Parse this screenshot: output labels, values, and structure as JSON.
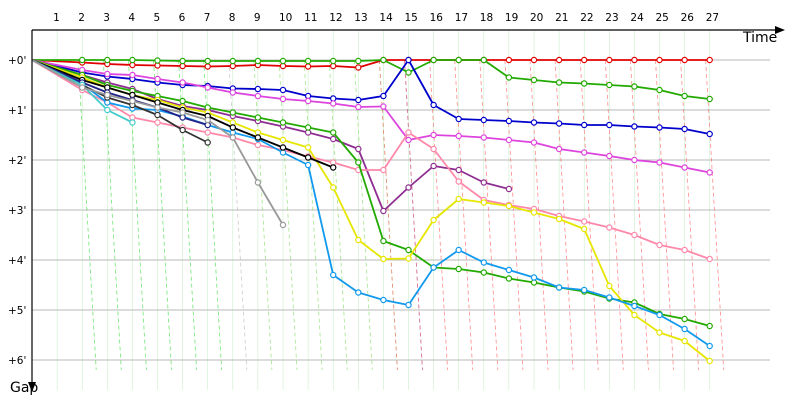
{
  "chart_data": {
    "type": "line",
    "title": "",
    "xlabel": "Time",
    "ylabel": "Gap",
    "x": [
      1,
      2,
      3,
      4,
      5,
      6,
      7,
      8,
      9,
      10,
      11,
      12,
      13,
      14,
      15,
      16,
      17,
      18,
      19,
      20,
      21,
      22,
      23,
      24,
      25,
      26,
      27
    ],
    "xlim": [
      0,
      29
    ],
    "ylim": [
      0,
      6.1
    ],
    "y_ticks": [
      0,
      1,
      2,
      3,
      4,
      5,
      6
    ],
    "y_tick_labels": [
      "+0'",
      "+1'",
      "+2'",
      "+3'",
      "+4'",
      "+5'",
      "+6'"
    ],
    "grid": true,
    "series": [
      {
        "color": "#e00000",
        "values": [
          [
            0,
            0
          ],
          [
            2,
            0.05
          ],
          [
            3,
            0.08
          ],
          [
            4,
            0.1
          ],
          [
            5,
            0.11
          ],
          [
            6,
            0.12
          ],
          [
            7,
            0.13
          ],
          [
            8,
            0.12
          ],
          [
            9,
            0.1
          ],
          [
            10,
            0.12
          ],
          [
            11,
            0.13
          ],
          [
            12,
            0.12
          ],
          [
            13,
            0.15
          ],
          [
            14,
            0.0
          ],
          [
            15,
            0.0
          ],
          [
            16,
            0.0
          ],
          [
            17,
            0.0
          ],
          [
            18,
            0.0
          ],
          [
            19,
            0.0
          ],
          [
            20,
            0.0
          ],
          [
            21,
            0.0
          ],
          [
            22,
            0.0
          ],
          [
            23,
            0.0
          ],
          [
            24,
            0.0
          ],
          [
            25,
            0.0
          ],
          [
            26,
            0.0
          ],
          [
            27,
            0.0
          ]
        ]
      },
      {
        "color": "#22aa00",
        "values": [
          [
            0,
            0
          ],
          [
            2,
            0.0
          ],
          [
            3,
            0.0
          ],
          [
            4,
            0.0
          ],
          [
            5,
            0.01
          ],
          [
            6,
            0.02
          ],
          [
            7,
            0.02
          ],
          [
            8,
            0.02
          ],
          [
            9,
            0.02
          ],
          [
            10,
            0.02
          ],
          [
            11,
            0.02
          ],
          [
            12,
            0.02
          ],
          [
            13,
            0.02
          ],
          [
            14,
            0.0
          ],
          [
            15,
            0.25
          ],
          [
            16,
            0.0
          ],
          [
            17,
            0.0
          ],
          [
            18,
            0.0
          ],
          [
            19,
            0.35
          ],
          [
            20,
            0.4
          ],
          [
            21,
            0.45
          ],
          [
            22,
            0.47
          ],
          [
            23,
            0.5
          ],
          [
            24,
            0.53
          ],
          [
            25,
            0.6
          ],
          [
            26,
            0.72
          ],
          [
            27,
            0.78
          ]
        ]
      },
      {
        "color": "#0000cc",
        "values": [
          [
            0,
            0
          ],
          [
            2,
            0.25
          ],
          [
            3,
            0.33
          ],
          [
            4,
            0.38
          ],
          [
            5,
            0.45
          ],
          [
            6,
            0.5
          ],
          [
            7,
            0.52
          ],
          [
            8,
            0.57
          ],
          [
            9,
            0.58
          ],
          [
            10,
            0.6
          ],
          [
            11,
            0.72
          ],
          [
            12,
            0.77
          ],
          [
            13,
            0.8
          ],
          [
            14,
            0.72
          ],
          [
            15,
            0.0
          ],
          [
            16,
            0.9
          ],
          [
            17,
            1.18
          ],
          [
            18,
            1.2
          ],
          [
            19,
            1.22
          ],
          [
            20,
            1.25
          ],
          [
            21,
            1.27
          ],
          [
            22,
            1.3
          ],
          [
            23,
            1.3
          ],
          [
            24,
            1.33
          ],
          [
            25,
            1.35
          ],
          [
            26,
            1.38
          ],
          [
            27,
            1.48
          ]
        ]
      },
      {
        "color": "#dd44dd",
        "values": [
          [
            0,
            0
          ],
          [
            2,
            0.2
          ],
          [
            3,
            0.28
          ],
          [
            4,
            0.3
          ],
          [
            5,
            0.38
          ],
          [
            6,
            0.45
          ],
          [
            7,
            0.55
          ],
          [
            8,
            0.65
          ],
          [
            9,
            0.72
          ],
          [
            10,
            0.78
          ],
          [
            11,
            0.82
          ],
          [
            12,
            0.87
          ],
          [
            13,
            0.94
          ],
          [
            14,
            0.93
          ],
          [
            15,
            1.6
          ],
          [
            16,
            1.5
          ],
          [
            17,
            1.52
          ],
          [
            18,
            1.55
          ],
          [
            19,
            1.6
          ],
          [
            20,
            1.65
          ],
          [
            21,
            1.78
          ],
          [
            22,
            1.85
          ],
          [
            23,
            1.92
          ],
          [
            24,
            2.0
          ],
          [
            25,
            2.05
          ],
          [
            26,
            2.15
          ],
          [
            27,
            2.25
          ]
        ]
      },
      {
        "color": "#8e2e90",
        "values": [
          [
            0,
            0
          ],
          [
            2,
            0.3
          ],
          [
            3,
            0.45
          ],
          [
            4,
            0.58
          ],
          [
            5,
            0.78
          ],
          [
            6,
            0.92
          ],
          [
            7,
            1.0
          ],
          [
            8,
            1.12
          ],
          [
            9,
            1.22
          ],
          [
            10,
            1.33
          ],
          [
            11,
            1.45
          ],
          [
            12,
            1.58
          ],
          [
            13,
            1.78
          ],
          [
            14,
            3.02
          ],
          [
            15,
            2.55
          ],
          [
            16,
            2.12
          ],
          [
            17,
            2.2
          ],
          [
            18,
            2.45
          ],
          [
            19,
            2.58
          ]
        ]
      },
      {
        "color": "#ff88aa",
        "values": [
          [
            0,
            0
          ],
          [
            2,
            0.6
          ],
          [
            3,
            0.85
          ],
          [
            4,
            1.15
          ],
          [
            5,
            1.25
          ],
          [
            6,
            1.35
          ],
          [
            7,
            1.45
          ],
          [
            8,
            1.55
          ],
          [
            9,
            1.7
          ],
          [
            10,
            1.8
          ],
          [
            11,
            1.93
          ],
          [
            12,
            2.05
          ],
          [
            13,
            2.2
          ],
          [
            14,
            2.2
          ],
          [
            15,
            1.45
          ],
          [
            16,
            1.78
          ],
          [
            17,
            2.43
          ],
          [
            18,
            2.8
          ],
          [
            19,
            2.9
          ],
          [
            20,
            2.98
          ],
          [
            21,
            3.12
          ],
          [
            22,
            3.23
          ],
          [
            23,
            3.35
          ],
          [
            24,
            3.5
          ],
          [
            25,
            3.7
          ],
          [
            26,
            3.8
          ],
          [
            27,
            3.98
          ]
        ]
      },
      {
        "color": "#22aa00",
        "values": [
          [
            0,
            0
          ],
          [
            2,
            0.3
          ],
          [
            3,
            0.5
          ],
          [
            4,
            0.62
          ],
          [
            5,
            0.72
          ],
          [
            6,
            0.82
          ],
          [
            7,
            0.95
          ],
          [
            8,
            1.05
          ],
          [
            9,
            1.15
          ],
          [
            10,
            1.25
          ],
          [
            11,
            1.35
          ],
          [
            12,
            1.45
          ],
          [
            13,
            2.05
          ],
          [
            14,
            3.62
          ],
          [
            15,
            3.8
          ],
          [
            16,
            4.15
          ],
          [
            17,
            4.18
          ],
          [
            18,
            4.25
          ],
          [
            19,
            4.37
          ],
          [
            20,
            4.45
          ],
          [
            21,
            4.55
          ],
          [
            22,
            4.63
          ],
          [
            23,
            4.77
          ],
          [
            24,
            4.85
          ],
          [
            25,
            5.08
          ],
          [
            26,
            5.18
          ],
          [
            27,
            5.32
          ]
        ]
      },
      {
        "color": "#e6e600",
        "values": [
          [
            0,
            0
          ],
          [
            2,
            0.35
          ],
          [
            3,
            0.55
          ],
          [
            4,
            0.7
          ],
          [
            5,
            0.8
          ],
          [
            6,
            0.95
          ],
          [
            7,
            1.05
          ],
          [
            8,
            1.25
          ],
          [
            9,
            1.45
          ],
          [
            10,
            1.6
          ],
          [
            11,
            1.75
          ],
          [
            12,
            2.55
          ],
          [
            13,
            3.6
          ],
          [
            14,
            3.98
          ],
          [
            15,
            3.97
          ],
          [
            16,
            3.2
          ],
          [
            17,
            2.78
          ],
          [
            18,
            2.85
          ],
          [
            19,
            2.92
          ],
          [
            20,
            3.05
          ],
          [
            21,
            3.18
          ],
          [
            22,
            3.38
          ],
          [
            23,
            4.52
          ],
          [
            24,
            5.1
          ],
          [
            25,
            5.45
          ],
          [
            26,
            5.62
          ],
          [
            27,
            6.02
          ]
        ]
      },
      {
        "color": "#1199ee",
        "values": [
          [
            0,
            0
          ],
          [
            2,
            0.48
          ],
          [
            3,
            0.85
          ],
          [
            4,
            0.97
          ],
          [
            5,
            1.0
          ],
          [
            6,
            1.13
          ],
          [
            7,
            1.3
          ],
          [
            8,
            1.45
          ],
          [
            9,
            1.58
          ],
          [
            10,
            1.85
          ],
          [
            11,
            2.1
          ],
          [
            12,
            4.3
          ],
          [
            13,
            4.65
          ],
          [
            14,
            4.8
          ],
          [
            15,
            4.9
          ],
          [
            16,
            4.15
          ],
          [
            17,
            3.8
          ],
          [
            18,
            4.05
          ],
          [
            19,
            4.2
          ],
          [
            20,
            4.35
          ],
          [
            21,
            4.55
          ],
          [
            22,
            4.6
          ],
          [
            23,
            4.75
          ],
          [
            24,
            4.92
          ],
          [
            25,
            5.1
          ],
          [
            26,
            5.38
          ],
          [
            27,
            5.72
          ]
        ]
      },
      {
        "color": "#000000",
        "values": [
          [
            0,
            0
          ],
          [
            2,
            0.4
          ],
          [
            3,
            0.55
          ],
          [
            4,
            0.7
          ],
          [
            5,
            0.85
          ],
          [
            6,
            1.0
          ],
          [
            7,
            1.12
          ],
          [
            8,
            1.35
          ],
          [
            9,
            1.55
          ],
          [
            10,
            1.75
          ],
          [
            11,
            1.95
          ],
          [
            12,
            2.15
          ]
        ]
      },
      {
        "color": "#222288",
        "values": [
          [
            0,
            0
          ],
          [
            2,
            0.45
          ],
          [
            3,
            0.65
          ],
          [
            4,
            0.8
          ],
          [
            5,
            0.95
          ],
          [
            6,
            1.15
          ],
          [
            7,
            1.3
          ]
        ]
      },
      {
        "color": "#333333",
        "values": [
          [
            0,
            0
          ],
          [
            2,
            0.5
          ],
          [
            3,
            0.75
          ],
          [
            4,
            0.9
          ],
          [
            5,
            1.1
          ],
          [
            6,
            1.4
          ],
          [
            7,
            1.65
          ]
        ]
      },
      {
        "color": "#44cccc",
        "values": [
          [
            0,
            0
          ],
          [
            2,
            0.5
          ],
          [
            3,
            1.0
          ],
          [
            4,
            1.25
          ]
        ]
      },
      {
        "color": "#999999",
        "values": [
          [
            0,
            0
          ],
          [
            2,
            0.55
          ],
          [
            3,
            0.7
          ],
          [
            4,
            0.82
          ],
          [
            5,
            0.95
          ],
          [
            6,
            1.05
          ],
          [
            7,
            1.2
          ],
          [
            8,
            1.55
          ],
          [
            9,
            2.45
          ],
          [
            10,
            3.3
          ]
        ]
      }
    ],
    "pit_stops": [
      {
        "color": "#44dd44",
        "x": [
          2,
          3,
          4,
          5,
          6,
          7
        ]
      },
      {
        "color": "#bbbbbb",
        "x": [
          8
        ]
      },
      {
        "color": "#88dd66",
        "x": [
          9,
          10,
          11,
          12,
          13,
          14
        ]
      },
      {
        "color": "#6666dd",
        "x": [
          15
        ]
      },
      {
        "color": "#ff6666",
        "x": [
          14,
          15,
          16,
          17,
          18,
          19,
          20,
          21,
          22,
          23,
          24,
          25,
          26,
          27
        ]
      }
    ]
  }
}
